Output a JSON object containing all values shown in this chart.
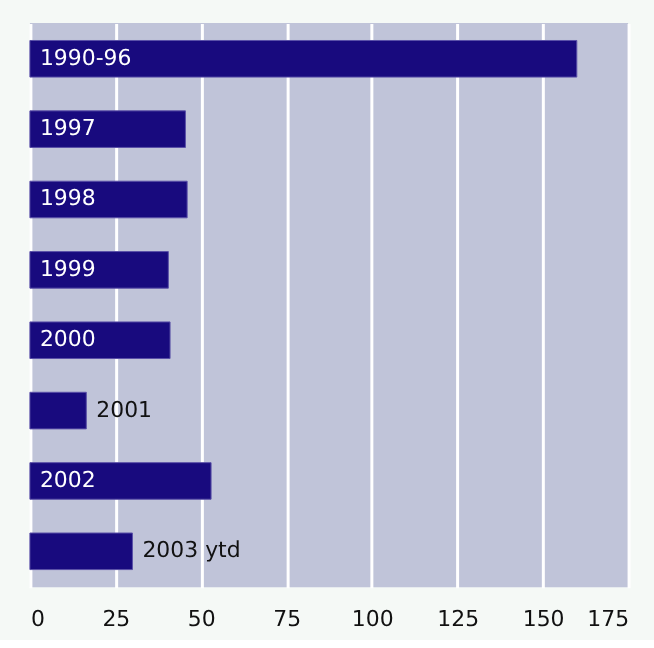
{
  "chart_data": {
    "type": "bar",
    "orientation": "horizontal",
    "categories": [
      "1990-96",
      "1997",
      "1998",
      "1999",
      "2000",
      "2001",
      "2002",
      "2003 ytd"
    ],
    "values": [
      160,
      45.5,
      46,
      40.5,
      41,
      16.5,
      53,
      30
    ],
    "color": "#180a7e",
    "xlim": [
      0,
      175
    ],
    "xticks": [
      0,
      25,
      50,
      75,
      100,
      125,
      150,
      175
    ],
    "grid": "x",
    "tick_labels": "x"
  }
}
